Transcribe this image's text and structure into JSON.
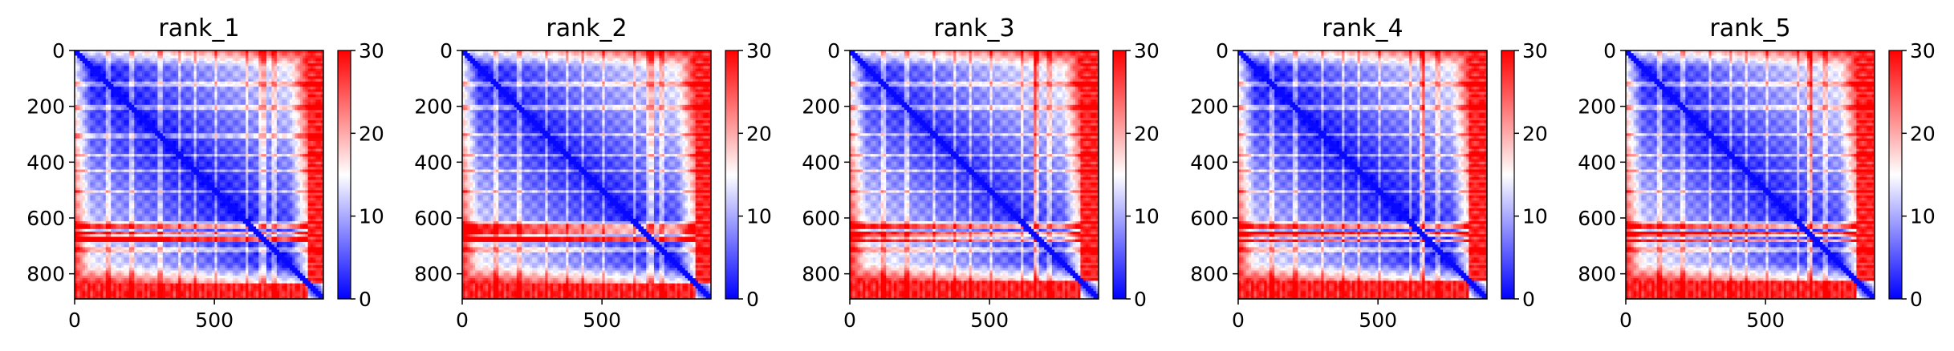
{
  "chart_data": [
    {
      "type": "heatmap",
      "title": "rank_1",
      "xticks": [
        "0",
        "500"
      ],
      "yticks": [
        "0",
        "200",
        "400",
        "600",
        "800"
      ],
      "xlim": [
        0,
        890
      ],
      "ylim": [
        890,
        0
      ],
      "n": 890,
      "colormap": "bwr",
      "colorbar": {
        "range": [
          0,
          30
        ],
        "ticks": [
          "0",
          "10",
          "20",
          "30"
        ]
      },
      "features": {
        "hbands": [
          120,
          205,
          305,
          375,
          430,
          505,
          615,
          665,
          715
        ],
        "bright_hbands": [
          630,
          655,
          675
        ],
        "vspike": 675,
        "block_end": 830
      }
    },
    {
      "type": "heatmap",
      "title": "rank_2",
      "xticks": [
        "0",
        "500"
      ],
      "yticks": [
        "0",
        "200",
        "400",
        "600",
        "800"
      ],
      "xlim": [
        0,
        890
      ],
      "ylim": [
        890,
        0
      ],
      "n": 890,
      "colormap": "bwr",
      "colorbar": {
        "range": [
          0,
          30
        ],
        "ticks": [
          "0",
          "10",
          "20",
          "30"
        ]
      },
      "features": {
        "hbands": [
          120,
          205,
          300,
          375,
          430,
          505,
          615,
          660,
          715
        ],
        "bright_hbands": [
          630,
          650,
          675
        ],
        "vspike": 680,
        "block_end": 830
      }
    },
    {
      "type": "heatmap",
      "title": "rank_3",
      "xticks": [
        "0",
        "500"
      ],
      "yticks": [
        "0",
        "200",
        "400",
        "600",
        "800"
      ],
      "xlim": [
        0,
        890
      ],
      "ylim": [
        890,
        0
      ],
      "n": 890,
      "colormap": "bwr",
      "colorbar": {
        "range": [
          0,
          30
        ],
        "ticks": [
          "0",
          "10",
          "20",
          "30"
        ]
      },
      "features": {
        "hbands": [
          120,
          205,
          300,
          375,
          430,
          505,
          615,
          665,
          715
        ],
        "bright_hbands": [
          630,
          655,
          680
        ],
        "vspike": 665,
        "block_end": 825
      }
    },
    {
      "type": "heatmap",
      "title": "rank_4",
      "xticks": [
        "0",
        "500"
      ],
      "yticks": [
        "0",
        "200",
        "400",
        "600",
        "800"
      ],
      "xlim": [
        0,
        890
      ],
      "ylim": [
        890,
        0
      ],
      "n": 890,
      "colormap": "bwr",
      "colorbar": {
        "range": [
          0,
          30
        ],
        "ticks": [
          "0",
          "10",
          "20",
          "30"
        ]
      },
      "features": {
        "hbands": [
          120,
          205,
          300,
          375,
          430,
          505,
          615,
          665,
          715
        ],
        "bright_hbands": [
          630,
          655,
          680
        ],
        "vspike": 660,
        "block_end": 825
      }
    },
    {
      "type": "heatmap",
      "title": "rank_5",
      "xticks": [
        "0",
        "500"
      ],
      "yticks": [
        "0",
        "200",
        "400",
        "600",
        "800"
      ],
      "xlim": [
        0,
        890
      ],
      "ylim": [
        890,
        0
      ],
      "n": 890,
      "colormap": "bwr",
      "colorbar": {
        "range": [
          0,
          30
        ],
        "ticks": [
          "0",
          "10",
          "20",
          "30"
        ]
      },
      "features": {
        "hbands": [
          120,
          205,
          300,
          375,
          430,
          505,
          615,
          665,
          715
        ],
        "bright_hbands": [
          630,
          655,
          680
        ],
        "vspike": 660,
        "block_end": 825
      }
    }
  ]
}
